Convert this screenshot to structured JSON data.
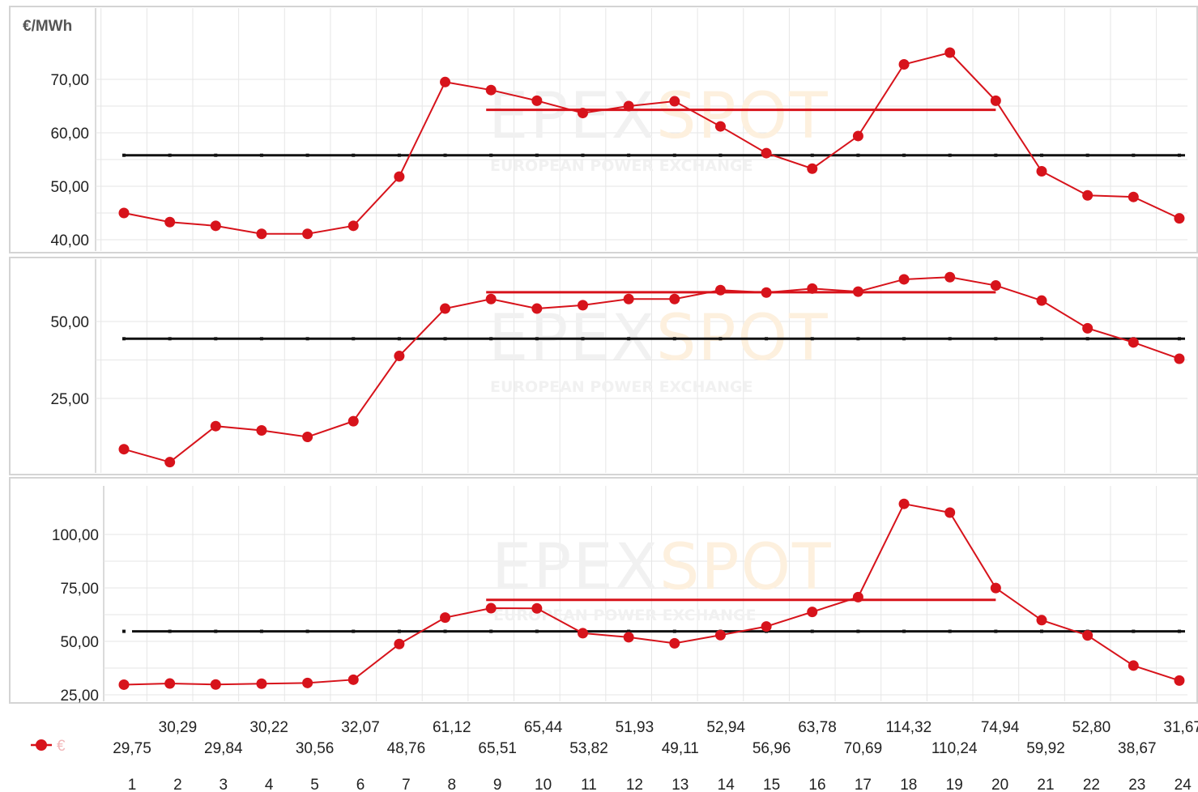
{
  "colors": {
    "series": "#d7131b",
    "reference": "#111111",
    "watermark_gray": "#f1f1f1",
    "watermark_orange": "#fdf0de",
    "legend_text": "#f2b8ba"
  },
  "watermark": {
    "big": "EPEX SPOT",
    "small": "EUROPEAN POWER EXCHANGE"
  },
  "legend": {
    "marker_icon": "red-dot-icon",
    "label": "€"
  },
  "chart_data": [
    {
      "type": "line",
      "unit": "€/MWh",
      "yticks": [
        "70,00",
        "60,00",
        "50,00",
        "40,00"
      ],
      "ytick_values": [
        70,
        60,
        50,
        40
      ],
      "ylim": [
        38.5,
        84
      ],
      "x": [
        1,
        2,
        3,
        4,
        5,
        6,
        7,
        8,
        9,
        10,
        11,
        12,
        13,
        14,
        15,
        16,
        17,
        18,
        19,
        20,
        21,
        22,
        23,
        24
      ],
      "series": [
        {
          "values": [
            45.0,
            43.3,
            42.6,
            41.1,
            41.1,
            42.6,
            51.8,
            69.5,
            68.0,
            66.0,
            63.7,
            65.0,
            65.9,
            61.2,
            56.2,
            53.3,
            59.4,
            72.8,
            75.0,
            66.0,
            52.8,
            48.3,
            48.0,
            44.0
          ]
        }
      ],
      "reference_lines": [
        {
          "value": 55.8,
          "x_from": 1,
          "x_to": 24
        },
        {
          "value": 64.3,
          "x_from": 9,
          "x_to": 20
        }
      ]
    },
    {
      "type": "line",
      "unit": "",
      "yticks": [
        "50,00",
        "25,00"
      ],
      "ytick_values": [
        50,
        25
      ],
      "ylim": [
        0,
        70.5
      ],
      "x": [
        1,
        2,
        3,
        4,
        5,
        6,
        7,
        8,
        9,
        10,
        11,
        12,
        13,
        14,
        15,
        16,
        17,
        18,
        19,
        20,
        21,
        22,
        23,
        24
      ],
      "series": [
        {
          "values": [
            8.5,
            4.3,
            16.0,
            14.6,
            12.5,
            17.6,
            38.8,
            54.2,
            57.3,
            54.2,
            55.3,
            57.3,
            57.3,
            60.2,
            59.4,
            60.7,
            59.7,
            63.7,
            64.4,
            61.7,
            56.8,
            47.8,
            43.2,
            37.9
          ]
        }
      ],
      "reference_lines": [
        {
          "value": 44.4,
          "x_from": 1,
          "x_to": 24
        },
        {
          "value": 59.5,
          "x_from": 9,
          "x_to": 20
        }
      ]
    },
    {
      "type": "line",
      "unit": "",
      "yticks": [
        "100,00",
        "75,00",
        "50,00",
        "25,00"
      ],
      "ytick_values": [
        100,
        75,
        50,
        25
      ],
      "ylim": [
        25,
        127
      ],
      "x": [
        1,
        2,
        3,
        4,
        5,
        6,
        7,
        8,
        9,
        10,
        11,
        12,
        13,
        14,
        15,
        16,
        17,
        18,
        19,
        20,
        21,
        22,
        23,
        24
      ],
      "series": [
        {
          "values": [
            29.75,
            30.29,
            29.84,
            30.22,
            30.56,
            32.07,
            48.76,
            61.12,
            65.51,
            65.44,
            53.82,
            51.93,
            49.11,
            52.94,
            56.96,
            63.78,
            70.69,
            114.32,
            110.24,
            74.94,
            59.92,
            52.8,
            38.67,
            31.67
          ]
        }
      ],
      "reference_lines": [
        {
          "value": 54.7,
          "x_from": 1,
          "x_to": 24
        },
        {
          "value": 69.4,
          "x_from": 9,
          "x_to": 20
        }
      ]
    }
  ],
  "table": {
    "hours": [
      "1",
      "2",
      "3",
      "4",
      "5",
      "6",
      "7",
      "8",
      "9",
      "10",
      "11",
      "12",
      "13",
      "14",
      "15",
      "16",
      "17",
      "18",
      "19",
      "20",
      "21",
      "22",
      "23",
      "24"
    ],
    "values": [
      "29,75",
      "30,29",
      "29,84",
      "30,22",
      "30,56",
      "32,07",
      "48,76",
      "61,12",
      "65,51",
      "65,44",
      "53,82",
      "51,93",
      "49,11",
      "52,94",
      "56,96",
      "63,78",
      "70,69",
      "114,32",
      "110,24",
      "74,94",
      "59,92",
      "52,80",
      "38,67",
      "31,67"
    ]
  }
}
